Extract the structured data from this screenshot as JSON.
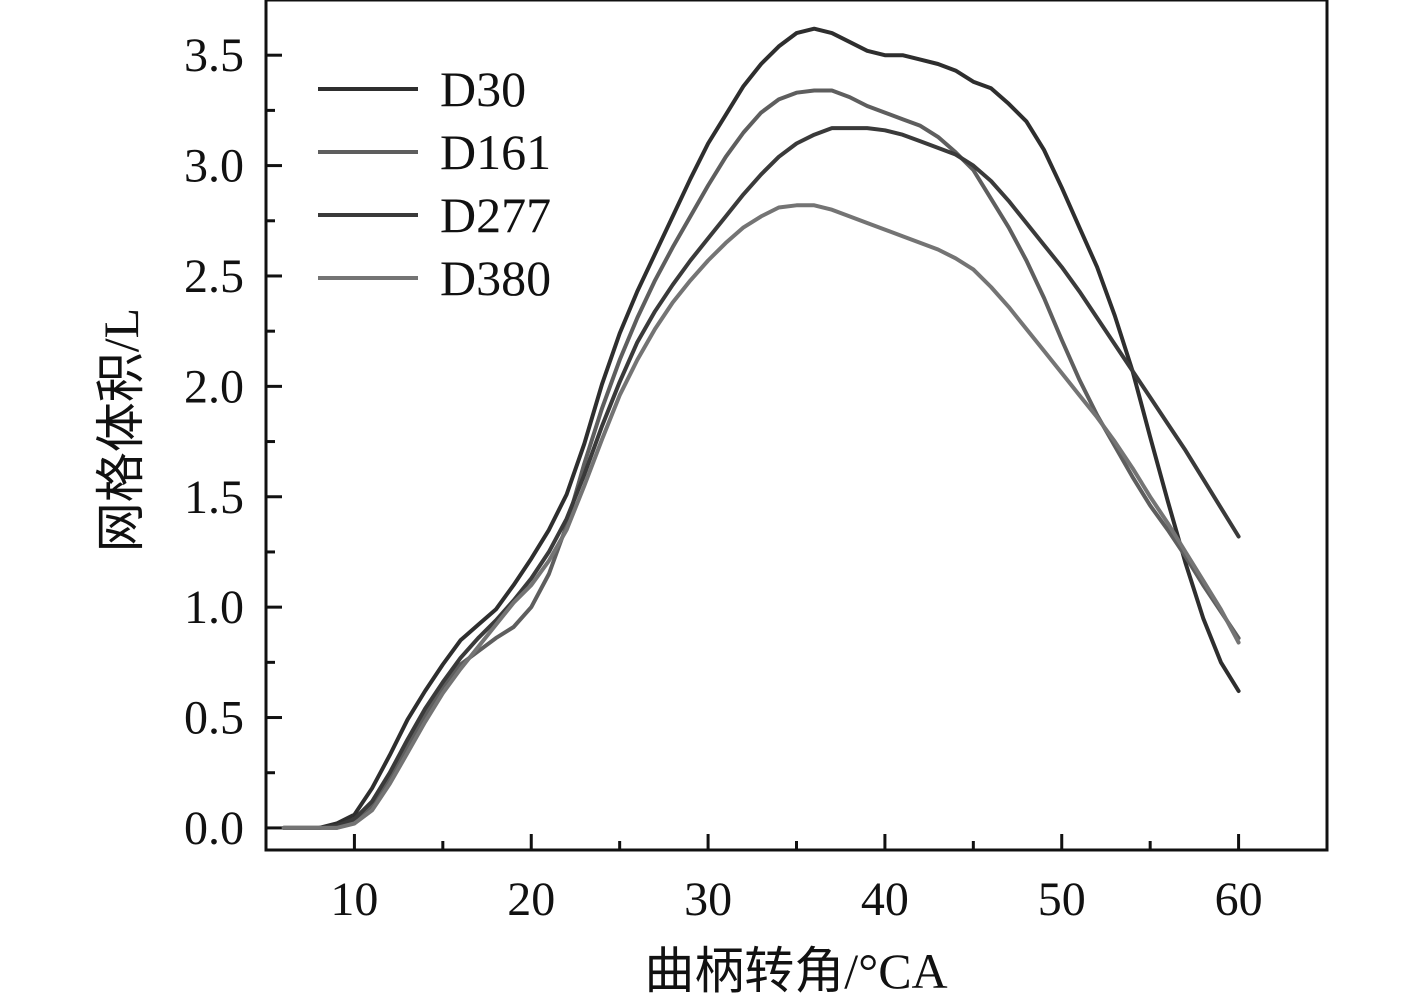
{
  "chart_data": {
    "type": "line",
    "title": "",
    "xlabel": "曲柄转角/°CA",
    "ylabel": "网格体积/L",
    "xlim": [
      5,
      65
    ],
    "ylim": [
      -0.1,
      3.75
    ],
    "x_ticks": [
      10,
      20,
      30,
      40,
      50,
      60
    ],
    "x_tick_labels": [
      "10",
      "20",
      "30",
      "40",
      "50",
      "60"
    ],
    "y_ticks": [
      0.0,
      0.5,
      1.0,
      1.5,
      2.0,
      2.5,
      3.0,
      3.5
    ],
    "y_tick_labels": [
      "0.0",
      "0.5",
      "1.0",
      "1.5",
      "2.0",
      "2.5",
      "3.0",
      "3.5"
    ],
    "grid": false,
    "legend_position": "top-left",
    "x": [
      6,
      7,
      8,
      9,
      10,
      11,
      12,
      13,
      14,
      15,
      16,
      17,
      18,
      19,
      20,
      21,
      22,
      23,
      24,
      25,
      26,
      27,
      28,
      29,
      30,
      31,
      32,
      33,
      34,
      35,
      36,
      37,
      38,
      39,
      40,
      41,
      42,
      43,
      44,
      45,
      46,
      47,
      48,
      49,
      50,
      51,
      52,
      53,
      54,
      55,
      56,
      57,
      58,
      59,
      60
    ],
    "series": [
      {
        "name": "D30",
        "color": "#2e2e2e",
        "values": [
          0.0,
          0.0,
          0.0,
          0.02,
          0.06,
          0.18,
          0.33,
          0.49,
          0.62,
          0.74,
          0.85,
          0.92,
          0.99,
          1.1,
          1.22,
          1.35,
          1.51,
          1.74,
          2.01,
          2.24,
          2.43,
          2.6,
          2.77,
          2.94,
          3.1,
          3.23,
          3.36,
          3.46,
          3.54,
          3.6,
          3.62,
          3.6,
          3.56,
          3.52,
          3.5,
          3.5,
          3.48,
          3.46,
          3.43,
          3.38,
          3.35,
          3.28,
          3.2,
          3.07,
          2.9,
          2.72,
          2.54,
          2.32,
          2.07,
          1.77,
          1.48,
          1.2,
          0.95,
          0.75,
          0.62
        ]
      },
      {
        "name": "D161",
        "color": "#5e5e5e",
        "values": [
          0.0,
          0.0,
          0.0,
          0.0,
          0.03,
          0.1,
          0.23,
          0.37,
          0.51,
          0.64,
          0.74,
          0.8,
          0.86,
          0.91,
          1.0,
          1.15,
          1.37,
          1.65,
          1.9,
          2.12,
          2.31,
          2.48,
          2.63,
          2.77,
          2.91,
          3.04,
          3.15,
          3.24,
          3.3,
          3.33,
          3.34,
          3.34,
          3.31,
          3.27,
          3.24,
          3.21,
          3.18,
          3.13,
          3.06,
          2.98,
          2.85,
          2.72,
          2.57,
          2.4,
          2.21,
          2.03,
          1.87,
          1.73,
          1.59,
          1.46,
          1.35,
          1.23,
          1.1,
          0.98,
          0.86
        ]
      },
      {
        "name": "D277",
        "color": "#3a3a3a",
        "values": [
          0.0,
          0.0,
          0.0,
          0.01,
          0.04,
          0.12,
          0.25,
          0.4,
          0.54,
          0.66,
          0.77,
          0.86,
          0.94,
          1.03,
          1.13,
          1.25,
          1.4,
          1.6,
          1.82,
          2.02,
          2.2,
          2.34,
          2.46,
          2.57,
          2.67,
          2.77,
          2.87,
          2.96,
          3.04,
          3.1,
          3.14,
          3.17,
          3.17,
          3.17,
          3.16,
          3.14,
          3.11,
          3.08,
          3.05,
          3.0,
          2.93,
          2.84,
          2.74,
          2.64,
          2.54,
          2.43,
          2.31,
          2.19,
          2.07,
          1.95,
          1.83,
          1.71,
          1.58,
          1.45,
          1.32
        ]
      },
      {
        "name": "D380",
        "color": "#747474",
        "values": [
          0.0,
          0.0,
          0.0,
          0.0,
          0.02,
          0.08,
          0.2,
          0.34,
          0.48,
          0.61,
          0.72,
          0.82,
          0.92,
          1.02,
          1.1,
          1.21,
          1.35,
          1.55,
          1.76,
          1.96,
          2.12,
          2.26,
          2.38,
          2.48,
          2.57,
          2.65,
          2.72,
          2.77,
          2.81,
          2.82,
          2.82,
          2.8,
          2.77,
          2.74,
          2.71,
          2.68,
          2.65,
          2.62,
          2.58,
          2.53,
          2.45,
          2.36,
          2.26,
          2.16,
          2.06,
          1.96,
          1.86,
          1.75,
          1.63,
          1.5,
          1.38,
          1.25,
          1.12,
          0.99,
          0.84
        ]
      }
    ]
  }
}
